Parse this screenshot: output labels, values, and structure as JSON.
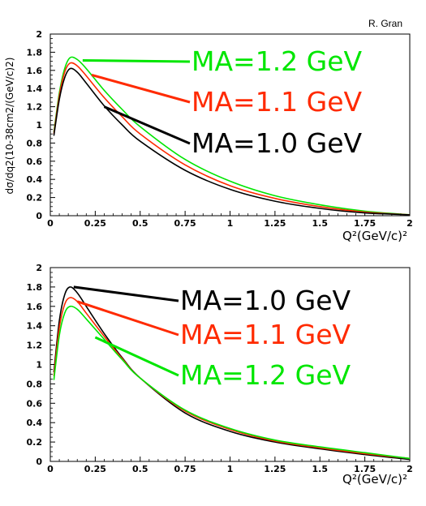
{
  "credit": "R. Gran",
  "colors": {
    "black": "#000000",
    "red": "#ff2a00",
    "green": "#00e600",
    "frame": "#000000",
    "grid": "#cfcfcf"
  },
  "chart_data": [
    {
      "type": "line",
      "ylabel": "dσ/dq2(10-38cm2/(GeV/c)2)",
      "xlabel": "Q²(GeV/c)²",
      "xlim": [
        0,
        2
      ],
      "ylim": [
        0,
        2
      ],
      "x_ticks": [
        "0",
        "0.25",
        "0.5",
        "0.75",
        "1",
        "1.25",
        "1.5",
        "1.75",
        "2"
      ],
      "y_ticks": [
        "0",
        "0.2",
        "0.4",
        "0.6",
        "0.8",
        "1",
        "1.2",
        "1.4",
        "1.6",
        "1.8",
        "2"
      ],
      "series": [
        {
          "name": "MA=1.2 GeV",
          "color": "green",
          "x": [
            0.02,
            0.05,
            0.08,
            0.11,
            0.15,
            0.2,
            0.3,
            0.4,
            0.5,
            0.75,
            1.0,
            1.25,
            1.5,
            1.75,
            2.0
          ],
          "y": [
            0.92,
            1.35,
            1.62,
            1.74,
            1.72,
            1.62,
            1.38,
            1.17,
            0.98,
            0.62,
            0.38,
            0.22,
            0.12,
            0.05,
            0.01
          ]
        },
        {
          "name": "MA=1.1 GeV",
          "color": "red",
          "x": [
            0.02,
            0.05,
            0.08,
            0.11,
            0.15,
            0.2,
            0.3,
            0.4,
            0.5,
            0.75,
            1.0,
            1.25,
            1.5,
            1.75,
            2.0
          ],
          "y": [
            0.9,
            1.32,
            1.58,
            1.68,
            1.65,
            1.54,
            1.3,
            1.09,
            0.9,
            0.56,
            0.33,
            0.19,
            0.1,
            0.04,
            0.01
          ]
        },
        {
          "name": "MA=1.0 GeV",
          "color": "black",
          "x": [
            0.02,
            0.05,
            0.08,
            0.11,
            0.15,
            0.2,
            0.3,
            0.4,
            0.5,
            0.75,
            1.0,
            1.25,
            1.5,
            1.75,
            2.0
          ],
          "y": [
            0.88,
            1.28,
            1.52,
            1.62,
            1.58,
            1.46,
            1.21,
            1.0,
            0.82,
            0.5,
            0.29,
            0.16,
            0.08,
            0.03,
            0.01
          ]
        }
      ],
      "annotations": [
        {
          "text": "MA=1.2 GeV",
          "color": "green",
          "pointer": [
            0.18,
            1.71
          ]
        },
        {
          "text": "MA=1.1 GeV",
          "color": "red",
          "pointer": [
            0.23,
            1.55
          ]
        },
        {
          "text": "MA=1.0 GeV",
          "color": "black",
          "pointer": [
            0.3,
            1.2
          ]
        }
      ]
    },
    {
      "type": "line",
      "ylabel": "",
      "xlabel": "Q²(GeV/c)²",
      "xlim": [
        0,
        2
      ],
      "ylim": [
        0,
        2
      ],
      "x_ticks": [
        "0",
        "0.25",
        "0.5",
        "0.75",
        "1",
        "1.25",
        "1.5",
        "1.75",
        "2"
      ],
      "y_ticks": [
        "0",
        "0.2",
        "0.4",
        "0.6",
        "0.8",
        "1",
        "1.2",
        "1.4",
        "1.6",
        "1.8",
        "2"
      ],
      "series": [
        {
          "name": "MA=1.0 GeV",
          "color": "black",
          "x": [
            0.02,
            0.05,
            0.08,
            0.11,
            0.15,
            0.2,
            0.3,
            0.4,
            0.5,
            0.75,
            1.0,
            1.25,
            1.5,
            1.75,
            2.0
          ],
          "y": [
            0.92,
            1.45,
            1.72,
            1.8,
            1.74,
            1.6,
            1.32,
            1.07,
            0.86,
            0.5,
            0.31,
            0.2,
            0.13,
            0.07,
            0.02
          ]
        },
        {
          "name": "MA=1.1 GeV",
          "color": "red",
          "x": [
            0.02,
            0.05,
            0.08,
            0.11,
            0.15,
            0.2,
            0.3,
            0.4,
            0.5,
            0.75,
            1.0,
            1.25,
            1.5,
            1.75,
            2.0
          ],
          "y": [
            0.88,
            1.38,
            1.62,
            1.69,
            1.65,
            1.53,
            1.29,
            1.06,
            0.86,
            0.52,
            0.33,
            0.21,
            0.14,
            0.08,
            0.03
          ]
        },
        {
          "name": "MA=1.2 GeV",
          "color": "green",
          "x": [
            0.02,
            0.05,
            0.08,
            0.11,
            0.15,
            0.2,
            0.3,
            0.4,
            0.5,
            0.75,
            1.0,
            1.25,
            1.5,
            1.75,
            2.0
          ],
          "y": [
            0.84,
            1.3,
            1.53,
            1.6,
            1.57,
            1.47,
            1.26,
            1.05,
            0.86,
            0.53,
            0.34,
            0.22,
            0.15,
            0.09,
            0.03
          ]
        }
      ],
      "annotations": [
        {
          "text": "MA=1.0 GeV",
          "color": "black",
          "pointer": [
            0.13,
            1.8
          ]
        },
        {
          "text": "MA=1.1 GeV",
          "color": "red",
          "pointer": [
            0.15,
            1.65
          ]
        },
        {
          "text": "MA=1.2 GeV",
          "color": "green",
          "pointer": [
            0.25,
            1.28
          ]
        }
      ]
    }
  ]
}
